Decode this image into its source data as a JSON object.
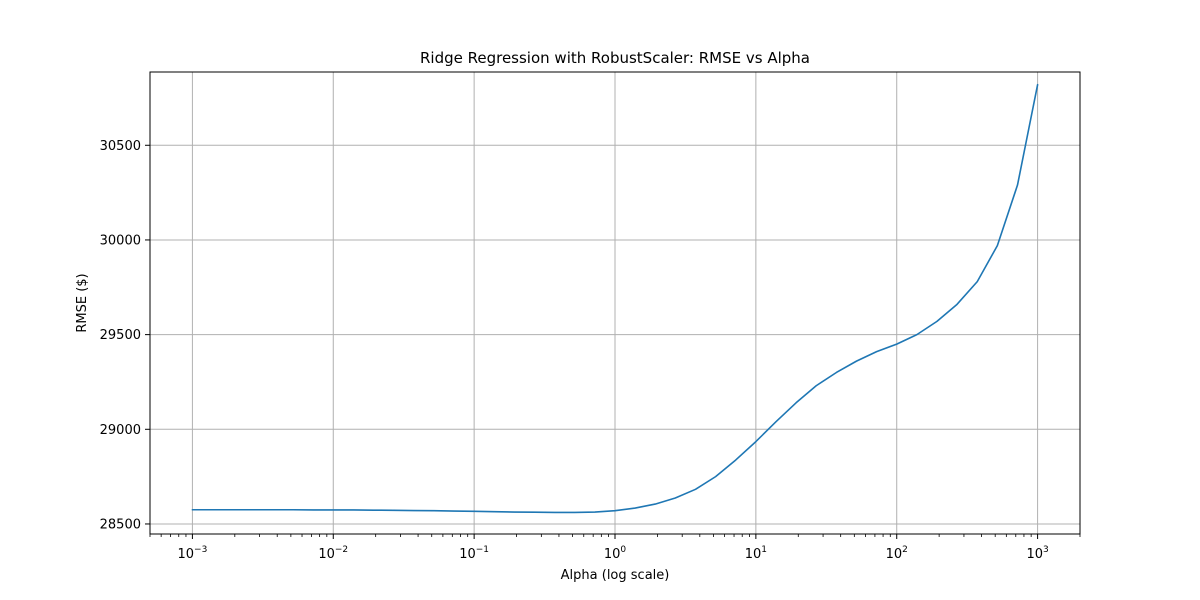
{
  "chart_data": {
    "type": "line",
    "title": "Ridge Regression with RobustScaler: RMSE vs Alpha",
    "xlabel": "Alpha (log scale)",
    "ylabel": "RMSE ($)",
    "xscale": "log",
    "xlim": [
      0.0005,
      2000
    ],
    "ylim": [
      28447,
      30887
    ],
    "grid": true,
    "x_ticks": [
      {
        "value": 0.001,
        "base": "10",
        "exp": "−3"
      },
      {
        "value": 0.01,
        "base": "10",
        "exp": "−2"
      },
      {
        "value": 0.1,
        "base": "10",
        "exp": "−1"
      },
      {
        "value": 1,
        "base": "10",
        "exp": "0"
      },
      {
        "value": 10,
        "base": "10",
        "exp": "1"
      },
      {
        "value": 100,
        "base": "10",
        "exp": "2"
      },
      {
        "value": 1000,
        "base": "10",
        "exp": "3"
      }
    ],
    "y_ticks": [
      28500,
      29000,
      29500,
      30000,
      30500
    ],
    "series": [
      {
        "color": "#1f77b4",
        "x": [
          0.001,
          0.00139,
          0.00193,
          0.00268,
          0.00373,
          0.00518,
          0.0072,
          0.01,
          0.0139,
          0.0193,
          0.0268,
          0.0373,
          0.0518,
          0.072,
          0.1,
          0.139,
          0.193,
          0.268,
          0.373,
          0.518,
          0.72,
          1,
          1.39,
          1.93,
          2.68,
          3.73,
          5.18,
          7.2,
          10,
          13.9,
          19.3,
          26.8,
          37.3,
          51.8,
          72,
          100,
          139,
          193,
          268,
          373,
          518,
          720,
          1000
        ],
        "y": [
          28575,
          28575,
          28575,
          28575,
          28575,
          28575,
          28574,
          28574,
          28574,
          28573,
          28572,
          28571,
          28570,
          28568,
          28567,
          28565,
          28563,
          28562,
          28561,
          28561,
          28563,
          28570,
          28584,
          28605,
          28637,
          28683,
          28750,
          28838,
          28935,
          29040,
          29140,
          29230,
          29300,
          29360,
          29410,
          29450,
          29500,
          29570,
          29660,
          29780,
          29970,
          30290,
          30820
        ]
      }
    ]
  }
}
